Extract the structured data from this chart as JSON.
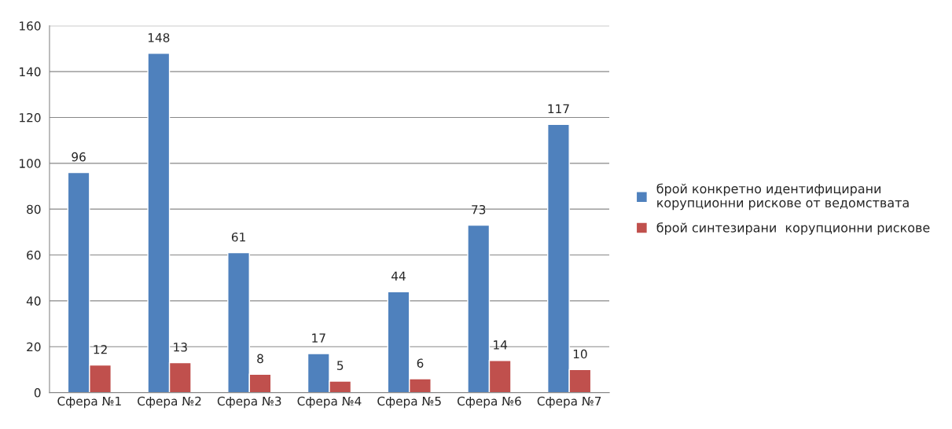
{
  "chart_data": {
    "type": "bar",
    "categories": [
      "Сфера №1",
      "Сфера №2",
      "Сфера №3",
      "Сфера №4",
      "Сфера №5",
      "Сфера №6",
      "Сфера №7"
    ],
    "series": [
      {
        "name": "брой конкретно идентифицирани корупционни рискове от ведомствата",
        "color": "#4f81bd",
        "values": [
          96,
          148,
          61,
          17,
          44,
          73,
          117
        ]
      },
      {
        "name": "брой синтезирани  корупционни рискове",
        "color": "#c0504d",
        "values": [
          12,
          13,
          8,
          5,
          6,
          14,
          10
        ]
      }
    ],
    "ylim": [
      0,
      160
    ],
    "yticks": [
      0,
      20,
      40,
      60,
      80,
      100,
      120,
      140,
      160
    ],
    "grid": "y",
    "legend": "right",
    "data_labels": true
  }
}
